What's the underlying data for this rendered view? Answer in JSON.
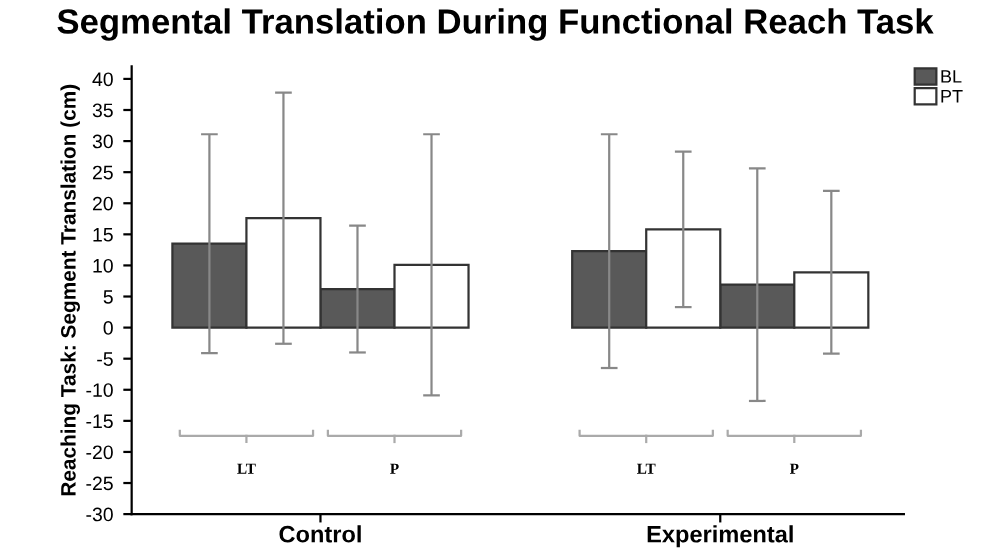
{
  "chart_data": {
    "type": "bar",
    "title": "Segmental Translation During Functional Reach Task",
    "ylabel": "Reaching Task: Segment Translation (cm)",
    "categories": [
      "LT",
      "P",
      "LT",
      "P"
    ],
    "annotations": [
      "Control",
      "Experimental"
    ],
    "series": [
      {
        "name": "BL",
        "color": "#595959",
        "values": [
          13.5,
          6.2,
          12.3,
          6.9
        ],
        "errors": [
          17.6,
          10.2,
          18.8,
          18.7
        ]
      },
      {
        "name": "PT",
        "color": "#ffffff",
        "values": [
          17.6,
          10.1,
          15.8,
          8.9
        ],
        "errors": [
          20.2,
          21.0,
          12.5,
          13.1
        ]
      }
    ],
    "ylim": [
      -30,
      42
    ],
    "yticks": [
      -30,
      -25,
      -20,
      -15,
      -10,
      -5,
      0,
      5,
      10,
      15,
      20,
      25,
      30,
      35,
      40
    ],
    "grid": false,
    "legend": "top right"
  }
}
